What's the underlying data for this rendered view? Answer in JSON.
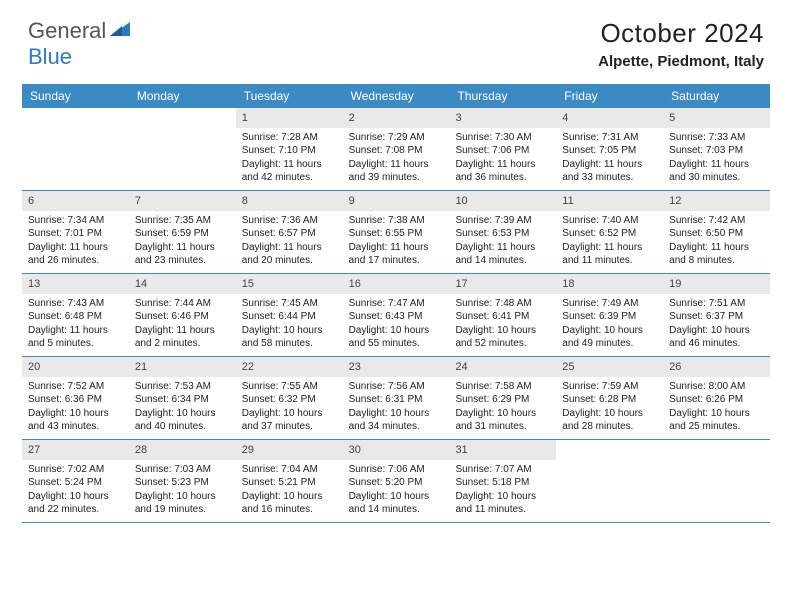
{
  "logo": {
    "text1": "General",
    "text2": "Blue",
    "color_general": "#555555",
    "color_blue": "#2f7ac0"
  },
  "title": "October 2024",
  "location": "Alpette, Piedmont, Italy",
  "colors": {
    "header_bar": "#3b8ac4",
    "header_text": "#ffffff",
    "daynum_bg": "#e9e9e9",
    "week_border": "#3b8ac4",
    "body_text": "#222222"
  },
  "day_names": [
    "Sunday",
    "Monday",
    "Tuesday",
    "Wednesday",
    "Thursday",
    "Friday",
    "Saturday"
  ],
  "weeks": [
    [
      null,
      null,
      {
        "n": "1",
        "sunrise": "7:28 AM",
        "sunset": "7:10 PM",
        "daylight": "11 hours and 42 minutes."
      },
      {
        "n": "2",
        "sunrise": "7:29 AM",
        "sunset": "7:08 PM",
        "daylight": "11 hours and 39 minutes."
      },
      {
        "n": "3",
        "sunrise": "7:30 AM",
        "sunset": "7:06 PM",
        "daylight": "11 hours and 36 minutes."
      },
      {
        "n": "4",
        "sunrise": "7:31 AM",
        "sunset": "7:05 PM",
        "daylight": "11 hours and 33 minutes."
      },
      {
        "n": "5",
        "sunrise": "7:33 AM",
        "sunset": "7:03 PM",
        "daylight": "11 hours and 30 minutes."
      }
    ],
    [
      {
        "n": "6",
        "sunrise": "7:34 AM",
        "sunset": "7:01 PM",
        "daylight": "11 hours and 26 minutes."
      },
      {
        "n": "7",
        "sunrise": "7:35 AM",
        "sunset": "6:59 PM",
        "daylight": "11 hours and 23 minutes."
      },
      {
        "n": "8",
        "sunrise": "7:36 AM",
        "sunset": "6:57 PM",
        "daylight": "11 hours and 20 minutes."
      },
      {
        "n": "9",
        "sunrise": "7:38 AM",
        "sunset": "6:55 PM",
        "daylight": "11 hours and 17 minutes."
      },
      {
        "n": "10",
        "sunrise": "7:39 AM",
        "sunset": "6:53 PM",
        "daylight": "11 hours and 14 minutes."
      },
      {
        "n": "11",
        "sunrise": "7:40 AM",
        "sunset": "6:52 PM",
        "daylight": "11 hours and 11 minutes."
      },
      {
        "n": "12",
        "sunrise": "7:42 AM",
        "sunset": "6:50 PM",
        "daylight": "11 hours and 8 minutes."
      }
    ],
    [
      {
        "n": "13",
        "sunrise": "7:43 AM",
        "sunset": "6:48 PM",
        "daylight": "11 hours and 5 minutes."
      },
      {
        "n": "14",
        "sunrise": "7:44 AM",
        "sunset": "6:46 PM",
        "daylight": "11 hours and 2 minutes."
      },
      {
        "n": "15",
        "sunrise": "7:45 AM",
        "sunset": "6:44 PM",
        "daylight": "10 hours and 58 minutes."
      },
      {
        "n": "16",
        "sunrise": "7:47 AM",
        "sunset": "6:43 PM",
        "daylight": "10 hours and 55 minutes."
      },
      {
        "n": "17",
        "sunrise": "7:48 AM",
        "sunset": "6:41 PM",
        "daylight": "10 hours and 52 minutes."
      },
      {
        "n": "18",
        "sunrise": "7:49 AM",
        "sunset": "6:39 PM",
        "daylight": "10 hours and 49 minutes."
      },
      {
        "n": "19",
        "sunrise": "7:51 AM",
        "sunset": "6:37 PM",
        "daylight": "10 hours and 46 minutes."
      }
    ],
    [
      {
        "n": "20",
        "sunrise": "7:52 AM",
        "sunset": "6:36 PM",
        "daylight": "10 hours and 43 minutes."
      },
      {
        "n": "21",
        "sunrise": "7:53 AM",
        "sunset": "6:34 PM",
        "daylight": "10 hours and 40 minutes."
      },
      {
        "n": "22",
        "sunrise": "7:55 AM",
        "sunset": "6:32 PM",
        "daylight": "10 hours and 37 minutes."
      },
      {
        "n": "23",
        "sunrise": "7:56 AM",
        "sunset": "6:31 PM",
        "daylight": "10 hours and 34 minutes."
      },
      {
        "n": "24",
        "sunrise": "7:58 AM",
        "sunset": "6:29 PM",
        "daylight": "10 hours and 31 minutes."
      },
      {
        "n": "25",
        "sunrise": "7:59 AM",
        "sunset": "6:28 PM",
        "daylight": "10 hours and 28 minutes."
      },
      {
        "n": "26",
        "sunrise": "8:00 AM",
        "sunset": "6:26 PM",
        "daylight": "10 hours and 25 minutes."
      }
    ],
    [
      {
        "n": "27",
        "sunrise": "7:02 AM",
        "sunset": "5:24 PM",
        "daylight": "10 hours and 22 minutes."
      },
      {
        "n": "28",
        "sunrise": "7:03 AM",
        "sunset": "5:23 PM",
        "daylight": "10 hours and 19 minutes."
      },
      {
        "n": "29",
        "sunrise": "7:04 AM",
        "sunset": "5:21 PM",
        "daylight": "10 hours and 16 minutes."
      },
      {
        "n": "30",
        "sunrise": "7:06 AM",
        "sunset": "5:20 PM",
        "daylight": "10 hours and 14 minutes."
      },
      {
        "n": "31",
        "sunrise": "7:07 AM",
        "sunset": "5:18 PM",
        "daylight": "10 hours and 11 minutes."
      },
      null,
      null
    ]
  ],
  "labels": {
    "sunrise": "Sunrise: ",
    "sunset": "Sunset: ",
    "daylight": "Daylight: "
  }
}
